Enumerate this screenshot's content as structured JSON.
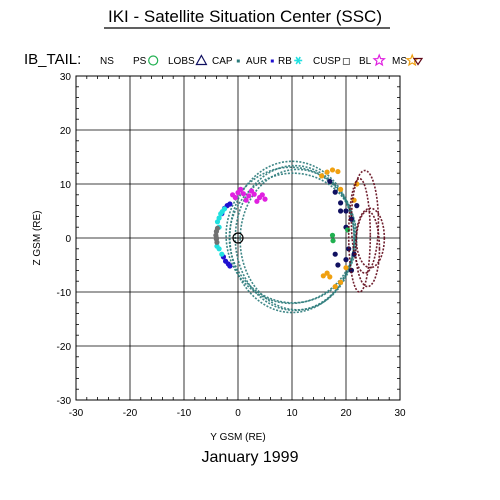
{
  "title": "IKI - Satellite Situation Center (SSC)",
  "date": "January    1999",
  "colors": {
    "axis": "#000000",
    "ns": "#2a7a7a",
    "ps": "#20b050",
    "lobs": "#101060",
    "cap": "#2a7a7a",
    "aur": "#2010d0",
    "rb": "#20e0e0",
    "cusp": "#707070",
    "bl": "#e020e0",
    "ms": "#f0a010",
    "sw": "#600818"
  },
  "chart_data": {
    "type": "scatter",
    "title": "IKI - Satellite Situation Center (SSC)",
    "xlabel": "Y GSM (RE)",
    "ylabel": "Z GSM (RE)",
    "xlim": [
      -30,
      30
    ],
    "ylim": [
      -30,
      30
    ],
    "xticks": [
      "-30",
      "-20",
      "-10",
      "0",
      "10",
      "20",
      "30"
    ],
    "yticks": [
      "-30",
      "-20",
      "-10",
      "0",
      "10",
      "20",
      "30"
    ],
    "grid": true,
    "legend_position": "top",
    "legend_title": "IB_TAIL:",
    "legend": [
      {
        "label": "NS",
        "symbol": "none",
        "color_key": "ns"
      },
      {
        "label": "PS",
        "symbol": "circle",
        "color_key": "ps"
      },
      {
        "label": "LOBS",
        "symbol": "triangle",
        "color_key": "lobs"
      },
      {
        "label": "CAP",
        "symbol": "small-square",
        "color_key": "cap"
      },
      {
        "label": "AUR",
        "symbol": "small-square",
        "color_key": "aur"
      },
      {
        "label": "RB",
        "symbol": "asterisk",
        "color_key": "rb"
      },
      {
        "label": "CUSP",
        "symbol": "square",
        "color_key": "cusp"
      },
      {
        "label": "BL",
        "symbol": "star",
        "color_key": "bl"
      },
      {
        "label": "MS",
        "symbol": "diamond-star",
        "color_key": "ms"
      },
      {
        "label": "",
        "symbol": "triangle-down",
        "color_key": "sw"
      }
    ],
    "earth_marker": {
      "x": 0,
      "y": 0
    },
    "series": [
      {
        "name": "NS",
        "color_key": "ns",
        "loops": [
          {
            "cx": 10.5,
            "cy": 0,
            "rx": 11,
            "ry": 13.4
          },
          {
            "cx": 10,
            "cy": 0.2,
            "rx": 11.5,
            "ry": 14
          },
          {
            "cx": 9.8,
            "cy": 0.5,
            "rx": 12,
            "ry": 12.6
          },
          {
            "cx": 11,
            "cy": -0.3,
            "rx": 10.6,
            "ry": 13
          },
          {
            "cx": 10.2,
            "cy": 0,
            "rx": 11.8,
            "ry": 12
          }
        ]
      },
      {
        "name": "AUR",
        "color_key": "aur",
        "points": [
          [
            -2.7,
            -3.5
          ],
          [
            -2.3,
            -4.3
          ],
          [
            -1.8,
            -4.8
          ],
          [
            -1.5,
            -5.2
          ],
          [
            -2.5,
            5.5
          ],
          [
            -2,
            6
          ],
          [
            -1.5,
            6.3
          ],
          [
            -3,
            4.5
          ]
        ]
      },
      {
        "name": "RB",
        "color_key": "rb",
        "points": [
          [
            -3.2,
            4.5
          ],
          [
            -3.5,
            3.7
          ],
          [
            -3.8,
            3
          ],
          [
            -3.5,
            2
          ],
          [
            -3.9,
            -1.5
          ],
          [
            -3.5,
            -2
          ],
          [
            -3,
            -3
          ],
          [
            -2.5,
            5.4
          ],
          [
            -2.9,
            4.9
          ]
        ]
      },
      {
        "name": "CUSP",
        "color_key": "cusp",
        "points": [
          [
            -3.8,
            1.8
          ],
          [
            -4,
            1.2
          ],
          [
            -4.1,
            0.5
          ],
          [
            -4,
            -0.2
          ],
          [
            -3.9,
            -0.8
          ],
          [
            -4,
            0
          ]
        ]
      },
      {
        "name": "BL",
        "color_key": "bl",
        "points": [
          [
            -1,
            8
          ],
          [
            0,
            8.4
          ],
          [
            1,
            8.2
          ],
          [
            2,
            7.8
          ],
          [
            3,
            8.1
          ],
          [
            4,
            7.5
          ],
          [
            5,
            7.2
          ],
          [
            -0.5,
            7.5
          ],
          [
            1.5,
            7
          ],
          [
            2.5,
            8.7
          ],
          [
            3.5,
            6.8
          ],
          [
            0.5,
            9
          ],
          [
            4.5,
            8
          ]
        ]
      },
      {
        "name": "MS",
        "color_key": "ms",
        "points": [
          [
            15.5,
            11.5
          ],
          [
            16.5,
            12.2
          ],
          [
            17.5,
            12.6
          ],
          [
            18.5,
            12.3
          ],
          [
            19,
            9
          ],
          [
            15.8,
            -7
          ],
          [
            16.5,
            -6.5
          ],
          [
            17,
            -7.2
          ],
          [
            18,
            -9
          ],
          [
            19,
            -8.2
          ],
          [
            20,
            -5.5
          ],
          [
            21,
            -6
          ],
          [
            22,
            10
          ],
          [
            21.5,
            7
          ]
        ]
      },
      {
        "name": "LOBS",
        "color_key": "lobs",
        "points": [
          [
            17,
            10.5
          ],
          [
            18,
            8.5
          ],
          [
            19,
            6.5
          ],
          [
            20,
            5
          ],
          [
            21,
            3.5
          ],
          [
            19,
            5
          ],
          [
            18,
            -3
          ],
          [
            18.5,
            -5
          ],
          [
            20,
            -4
          ],
          [
            21,
            -6
          ],
          [
            21.5,
            -3
          ],
          [
            20.5,
            -2
          ],
          [
            22,
            6
          ],
          [
            20,
            2
          ]
        ]
      },
      {
        "name": "PS",
        "color_key": "ps",
        "points": [
          [
            17.5,
            0.5
          ],
          [
            17.6,
            -0.5
          ],
          [
            20.3,
            1.5
          ]
        ]
      },
      {
        "name": "",
        "color_key": "sw",
        "loops": [
          {
            "cx": 23.5,
            "cy": 3,
            "rx": 2.5,
            "ry": 9.5
          },
          {
            "cx": 24.5,
            "cy": 0,
            "rx": 2.6,
            "ry": 5.5
          },
          {
            "cx": 22.5,
            "cy": 0.5,
            "rx": 2,
            "ry": 10.5
          },
          {
            "cx": 24,
            "cy": -2,
            "rx": 2.2,
            "ry": 7
          }
        ]
      }
    ]
  }
}
